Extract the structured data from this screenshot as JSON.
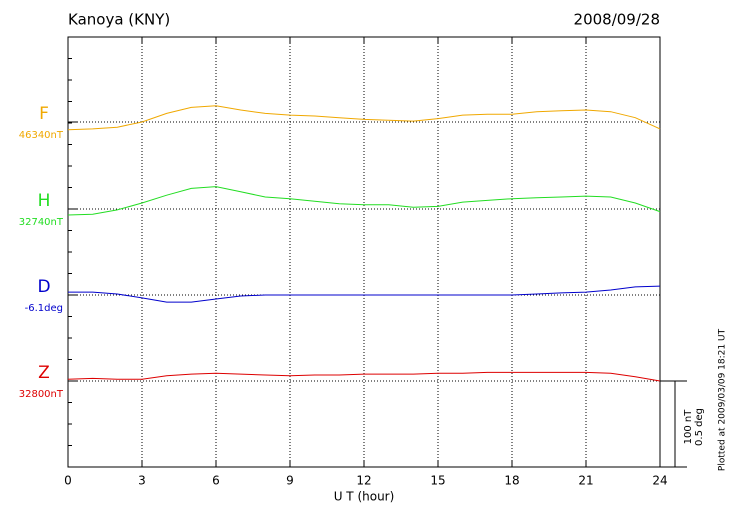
{
  "chart_data": {
    "type": "line",
    "title": "Kanoya (KNY)",
    "date": "2008/09/28",
    "x_label": "U T (hour)",
    "note": "Plotted at 2009/03/09 18:21 UT",
    "xlim": [
      0,
      24
    ],
    "xticks": [
      0,
      3,
      6,
      9,
      12,
      15,
      18,
      21,
      24
    ],
    "grid": true,
    "scale_bar": [
      {
        "value": 100,
        "label": "100 nT",
        "unit": "nT"
      },
      {
        "value": 0.5,
        "label": "0.5 deg",
        "unit": "deg"
      }
    ],
    "x": [
      0,
      1,
      2,
      3,
      4,
      5,
      6,
      7,
      8,
      9,
      10,
      11,
      12,
      13,
      14,
      15,
      16,
      17,
      18,
      19,
      20,
      21,
      22,
      23,
      24
    ],
    "series": [
      {
        "name": "F",
        "color": "#f0a800",
        "unit": "nT",
        "baseline": {
          "value": 46340,
          "label": "46340nT"
        },
        "values": [
          46331,
          46332,
          46334,
          46340,
          46350,
          46357,
          46359,
          46354,
          46350,
          46348,
          46347,
          46345,
          46343,
          46342,
          46341,
          46344,
          46348,
          46349,
          46349,
          46352,
          46353,
          46354,
          46352,
          46345,
          46332
        ]
      },
      {
        "name": "H",
        "color": "#22dd22",
        "unit": "nT",
        "baseline": {
          "value": 32740,
          "label": "32740nT"
        },
        "values": [
          32733,
          32734,
          32739,
          32747,
          32756,
          32764,
          32766,
          32760,
          32754,
          32752,
          32749,
          32746,
          32745,
          32745,
          32742,
          32743,
          32748,
          32750,
          32752,
          32753,
          32754,
          32755,
          32754,
          32747,
          32737
        ]
      },
      {
        "name": "D",
        "color": "#0000cc",
        "unit": "deg",
        "baseline": {
          "value": -6.1,
          "label": "-6.1deg"
        },
        "values": [
          -6.083,
          -6.083,
          -6.094,
          -6.117,
          -6.141,
          -6.141,
          -6.123,
          -6.106,
          -6.1,
          -6.1,
          -6.1,
          -6.1,
          -6.1,
          -6.1,
          -6.1,
          -6.1,
          -6.1,
          -6.1,
          -6.1,
          -6.094,
          -6.088,
          -6.083,
          -6.071,
          -6.053,
          -6.048
        ]
      },
      {
        "name": "Z",
        "color": "#dd0000",
        "unit": "nT",
        "baseline": {
          "value": 32800,
          "label": "32800nT"
        },
        "values": [
          32802,
          32803,
          32802,
          32802,
          32806,
          32808,
          32809,
          32808,
          32807,
          32806,
          32807,
          32807,
          32808,
          32808,
          32808,
          32809,
          32809,
          32810,
          32810,
          32810,
          32810,
          32810,
          32809,
          32805,
          32800
        ]
      }
    ]
  }
}
